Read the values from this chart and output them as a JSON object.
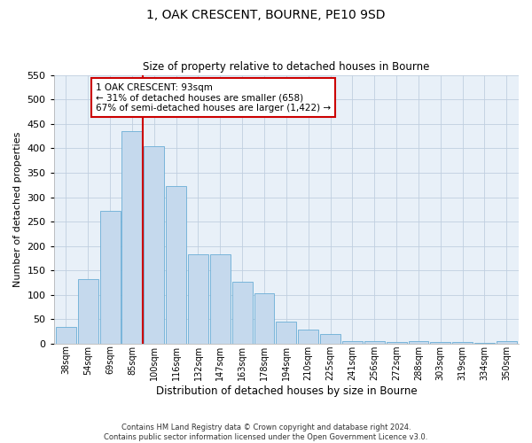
{
  "title": "1, OAK CRESCENT, BOURNE, PE10 9SD",
  "subtitle": "Size of property relative to detached houses in Bourne",
  "xlabel": "Distribution of detached houses by size in Bourne",
  "ylabel": "Number of detached properties",
  "categories": [
    "38sqm",
    "54sqm",
    "69sqm",
    "85sqm",
    "100sqm",
    "116sqm",
    "132sqm",
    "147sqm",
    "163sqm",
    "178sqm",
    "194sqm",
    "210sqm",
    "225sqm",
    "241sqm",
    "256sqm",
    "272sqm",
    "288sqm",
    "303sqm",
    "319sqm",
    "334sqm",
    "350sqm"
  ],
  "values": [
    35,
    133,
    272,
    435,
    405,
    322,
    184,
    184,
    127,
    104,
    45,
    30,
    20,
    6,
    6,
    3,
    5,
    3,
    3,
    2,
    5
  ],
  "bar_color": "#c5d9ed",
  "bar_edge_color": "#6aaed6",
  "ylim": [
    0,
    550
  ],
  "yticks": [
    0,
    50,
    100,
    150,
    200,
    250,
    300,
    350,
    400,
    450,
    500,
    550
  ],
  "vline_color": "#cc0000",
  "annotation_text": "1 OAK CRESCENT: 93sqm\n← 31% of detached houses are smaller (658)\n67% of semi-detached houses are larger (1,422) →",
  "annotation_box_color": "#ffffff",
  "annotation_box_edge": "#cc0000",
  "footer_line1": "Contains HM Land Registry data © Crown copyright and database right 2024.",
  "footer_line2": "Contains public sector information licensed under the Open Government Licence v3.0.",
  "bg_color": "#ffffff",
  "plot_bg_color": "#e8f0f8",
  "grid_color": "#c0cfe0"
}
